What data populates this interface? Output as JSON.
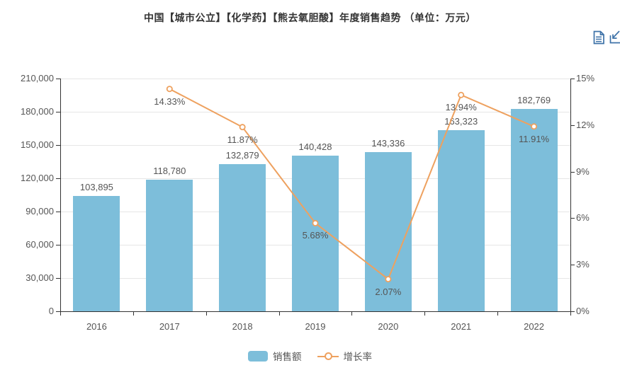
{
  "title": {
    "text": "中国【城市公立】【化学药】【熊去氧胆酸】年度销售趋势 （单位：万元）"
  },
  "toolbox": {
    "icons": [
      {
        "name": "data-view"
      },
      {
        "name": "save-as-image"
      }
    ]
  },
  "legend": {
    "items": [
      {
        "label": "销售额",
        "type": "bar"
      },
      {
        "label": "增长率",
        "type": "line"
      }
    ]
  },
  "colors": {
    "bar": "#7DBEDA",
    "line": "#EEA15F",
    "marker_fill": "#FFFFFF",
    "axis": "#333333",
    "grid": "#E6E6E6",
    "label": "#555555",
    "title": "#333333",
    "toolbox_icon": "#3E72A8"
  },
  "chart_data": {
    "type": "bar",
    "subtype": "bar-plus-line-dual-axis",
    "title": "中国【城市公立】【化学药】【熊去氧胆酸】年度销售趋势 （单位：万元）",
    "categories": [
      "2016",
      "2017",
      "2018",
      "2019",
      "2020",
      "2021",
      "2022"
    ],
    "series": [
      {
        "name": "销售额",
        "type": "bar",
        "y_axis": "left",
        "values": [
          103895,
          118780,
          132879,
          140428,
          143336,
          163323,
          182769
        ],
        "data_labels": [
          "103,895",
          "118,780",
          "132,879",
          "140,428",
          "143,336",
          "163,323",
          "182,769"
        ]
      },
      {
        "name": "增长率",
        "type": "line",
        "y_axis": "right",
        "values_pct": [
          null,
          14.33,
          11.87,
          5.68,
          2.07,
          13.94,
          11.91
        ],
        "data_labels": [
          null,
          "14.33%",
          "11.87%",
          "5.68%",
          "2.07%",
          "13.94%",
          "11.91%"
        ]
      }
    ],
    "y_axis_left": {
      "min": 0,
      "max": 210000,
      "interval": 30000,
      "tick_labels": [
        "0",
        "30,000",
        "60,000",
        "90,000",
        "120,000",
        "150,000",
        "180,000",
        "210,000"
      ]
    },
    "y_axis_right": {
      "min": 0,
      "max": 15,
      "interval": 3,
      "tick_labels": [
        "0%",
        "3%",
        "6%",
        "9%",
        "12%",
        "15%"
      ]
    },
    "grid": true,
    "legend_position": "bottom",
    "xlabel": "",
    "ylabel": ""
  }
}
